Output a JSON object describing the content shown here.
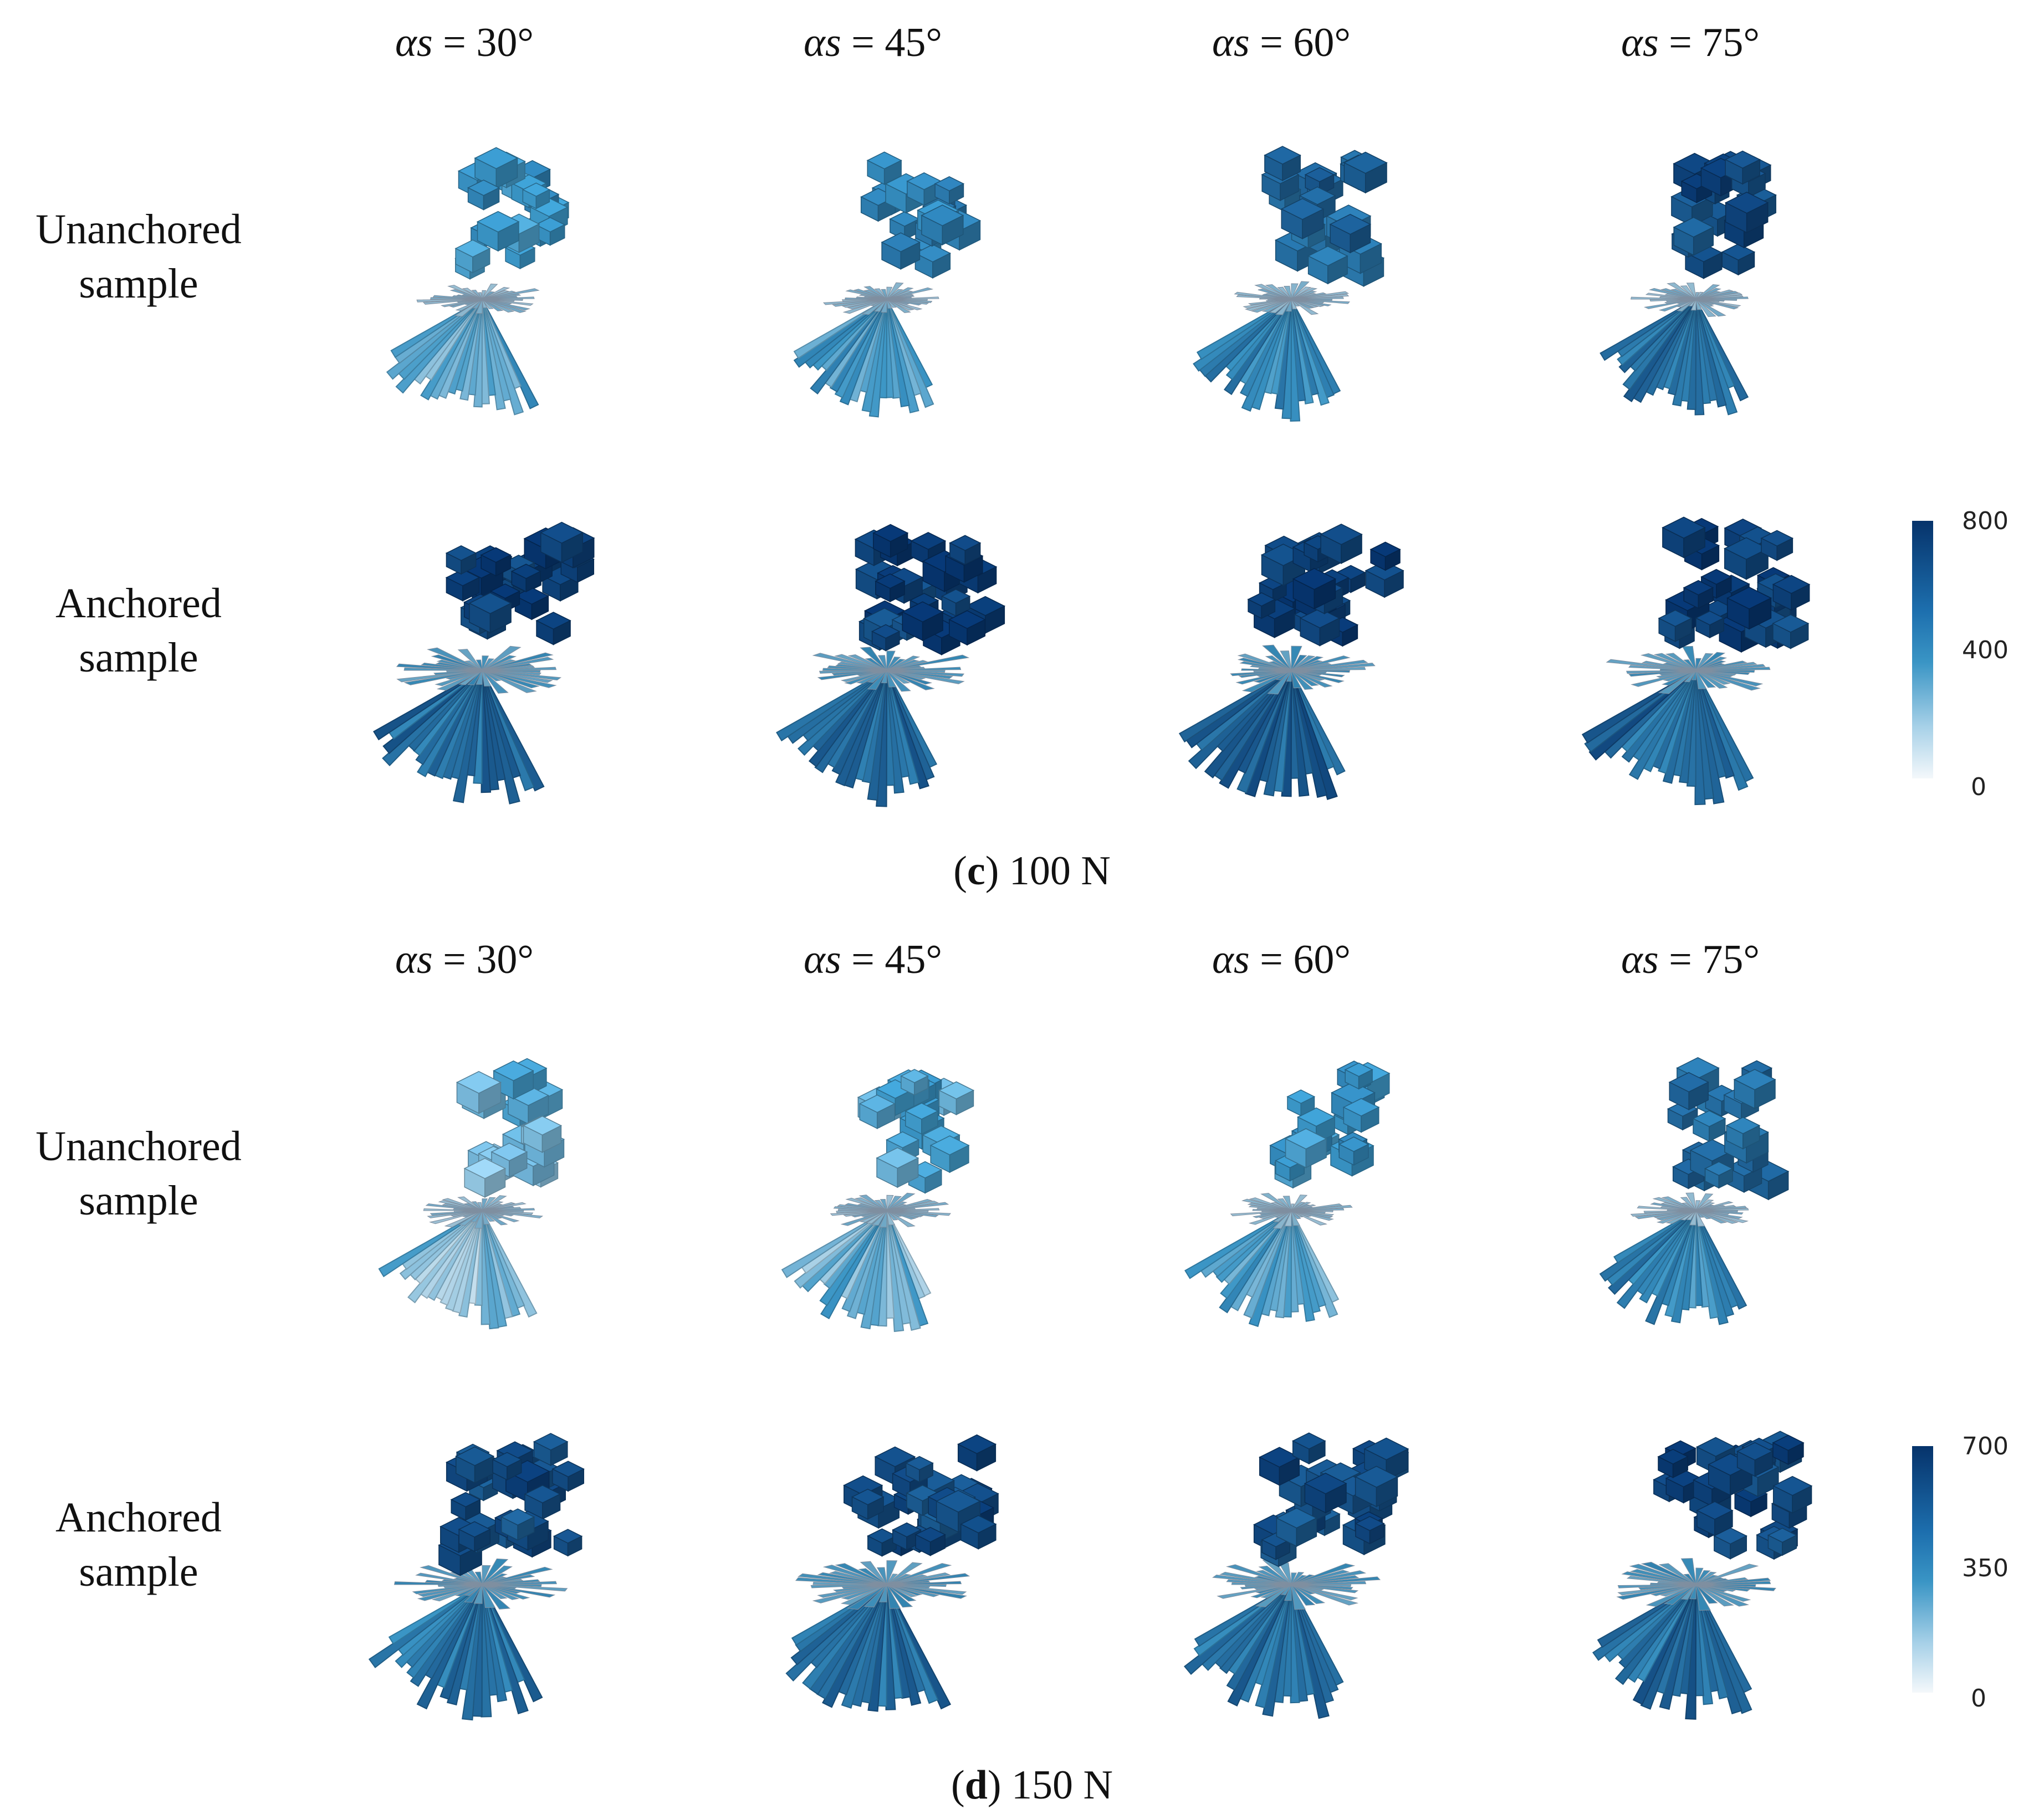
{
  "panels": [
    {
      "id": "c",
      "caption_letter": "c",
      "caption_text": "100 N",
      "column_headers": [
        {
          "symbol": "αs",
          "value": "= 30°"
        },
        {
          "symbol": "αs",
          "value": "= 45°"
        },
        {
          "symbol": "αs",
          "value": "= 60°"
        },
        {
          "symbol": "αs",
          "value": "= 75°"
        }
      ],
      "rows": [
        {
          "label_line1": "Unanchored",
          "label_line2": "sample",
          "intensity": [
            0.5,
            0.6,
            0.72,
            0.85
          ]
        },
        {
          "label_line1": "Anchored",
          "label_line2": "sample",
          "intensity": [
            0.92,
            0.92,
            0.93,
            0.93
          ]
        }
      ],
      "colorbar": {
        "max": "800",
        "mid": "400",
        "min": "0"
      }
    },
    {
      "id": "d",
      "caption_letter": "d",
      "caption_text": "150 N",
      "column_headers": [
        {
          "symbol": "αs",
          "value": "= 30°"
        },
        {
          "symbol": "αs",
          "value": "= 45°"
        },
        {
          "symbol": "αs",
          "value": "= 60°"
        },
        {
          "symbol": "αs",
          "value": "= 75°"
        }
      ],
      "rows": [
        {
          "label_line1": "Unanchored",
          "label_line2": "sample",
          "intensity": [
            0.35,
            0.42,
            0.52,
            0.7
          ]
        },
        {
          "label_line1": "Anchored",
          "label_line2": "sample",
          "intensity": [
            0.85,
            0.87,
            0.87,
            0.88
          ]
        }
      ],
      "colorbar": {
        "max": "700",
        "mid": "350",
        "min": "0"
      }
    }
  ],
  "colors": {
    "colormap_low": "#f4f8fb",
    "colormap_mid": "#3a95c5",
    "colormap_high": "#06336b"
  }
}
